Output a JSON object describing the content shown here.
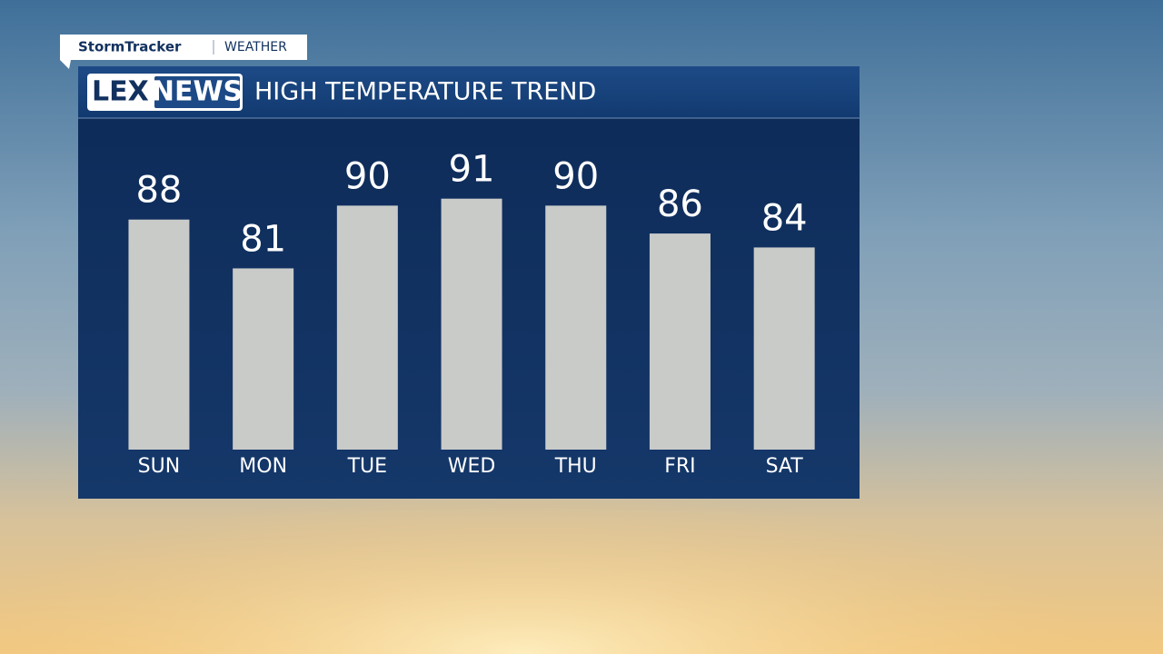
{
  "branding": {
    "tag": "StormTracker",
    "section": "WEATHER",
    "logo_left": "LEX",
    "logo_right": "NEWS"
  },
  "chart_data": {
    "type": "bar",
    "title": "HIGH TEMPERATURE TREND",
    "categories": [
      "SUN",
      "MON",
      "TUE",
      "WED",
      "THU",
      "FRI",
      "SAT"
    ],
    "values": [
      88,
      81,
      90,
      91,
      90,
      86,
      84
    ],
    "color": "#c9cbc9",
    "ylim": [
      55,
      95
    ]
  }
}
